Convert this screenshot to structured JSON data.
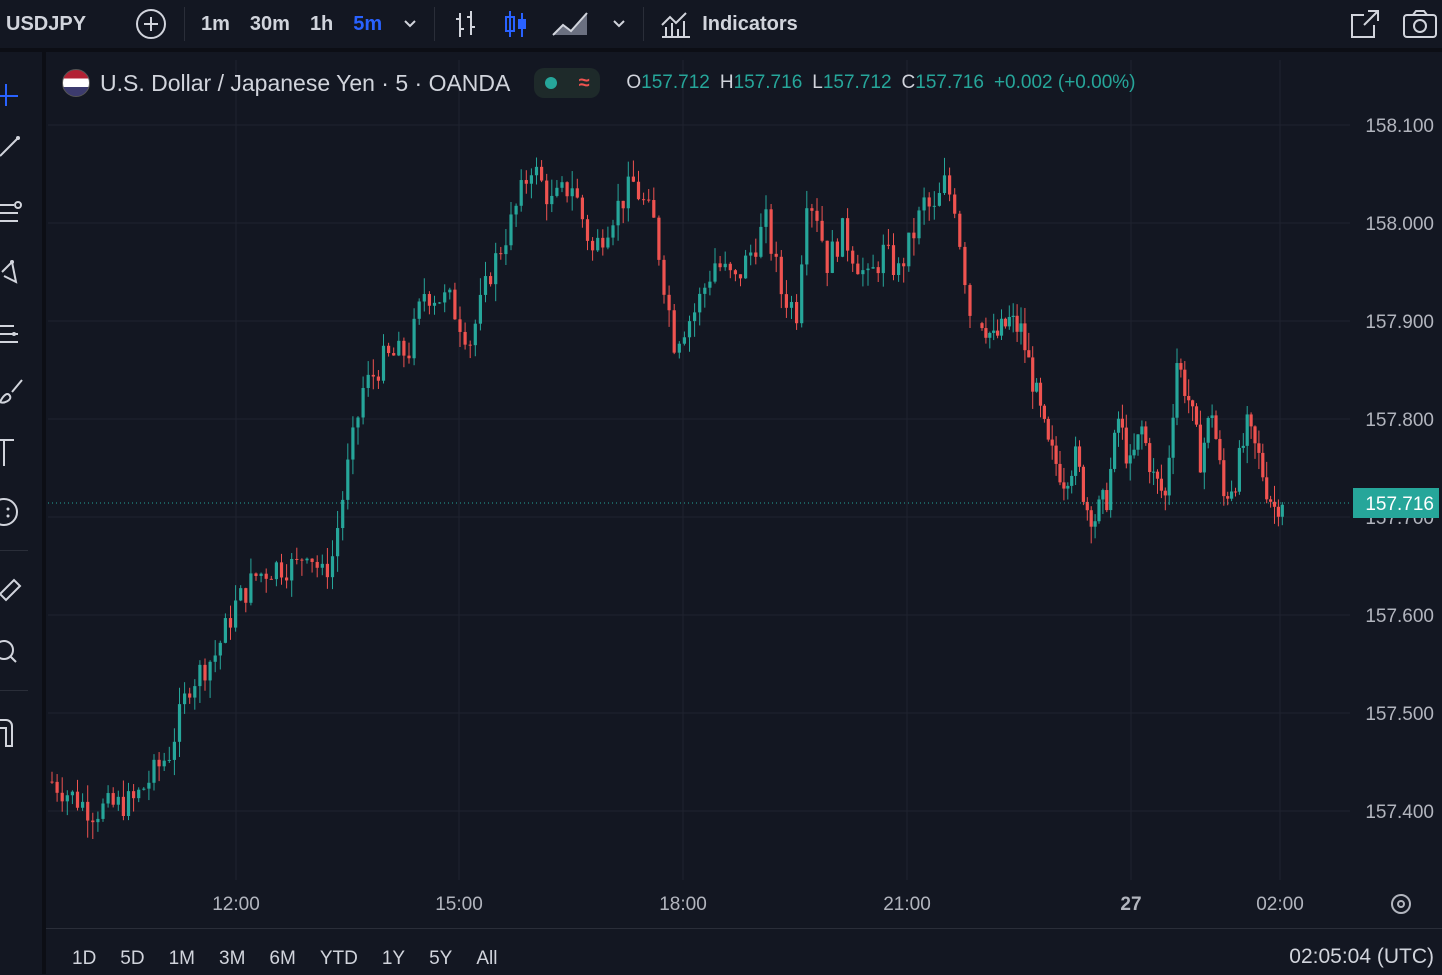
{
  "toolbar": {
    "symbol": "USDJPY",
    "intervals": [
      "1m",
      "30m",
      "1h",
      "5m"
    ],
    "active_interval": "5m",
    "indicators_label": "Indicators"
  },
  "legend": {
    "title": "U.S. Dollar / Japanese Yen · 5 · OANDA",
    "open_key": "O",
    "open": "157.712",
    "high_key": "H",
    "high": "157.716",
    "low_key": "L",
    "low": "157.712",
    "close_key": "C",
    "close": "157.716",
    "change": "+0.002 (+0.00%)"
  },
  "chart_data": {
    "type": "candlestick",
    "y_ticks": [
      "158.100",
      "158.000",
      "157.900",
      "157.800",
      "157.700",
      "157.600",
      "157.500",
      "157.400"
    ],
    "ylim": [
      157.36,
      158.12
    ],
    "x_ticks": [
      "12:00",
      "15:00",
      "18:00",
      "21:00",
      "27",
      "02:00"
    ],
    "last_price": "157.716",
    "grid": true,
    "up_color": "#26a69a",
    "down_color": "#ef5350",
    "series_path": [
      [
        0,
        157.43
      ],
      [
        8,
        157.4
      ],
      [
        16,
        157.41
      ],
      [
        23,
        157.46
      ],
      [
        27,
        157.53
      ],
      [
        32,
        157.56
      ],
      [
        36,
        157.61
      ],
      [
        40,
        157.64
      ],
      [
        44,
        157.65
      ],
      [
        48,
        157.65
      ],
      [
        50,
        157.67
      ],
      [
        53,
        157.64
      ],
      [
        55,
        157.66
      ],
      [
        58,
        157.75
      ],
      [
        61,
        157.83
      ],
      [
        65,
        157.86
      ],
      [
        70,
        157.87
      ],
      [
        73,
        157.93
      ],
      [
        78,
        157.92
      ],
      [
        82,
        157.88
      ],
      [
        86,
        157.95
      ],
      [
        90,
        158.0
      ],
      [
        94,
        158.06
      ],
      [
        98,
        158.02
      ],
      [
        102,
        158.04
      ],
      [
        106,
        157.97
      ],
      [
        110,
        158.01
      ],
      [
        114,
        158.04
      ],
      [
        118,
        158.0
      ],
      [
        122,
        157.88
      ],
      [
        126,
        157.91
      ],
      [
        130,
        157.96
      ],
      [
        134,
        157.94
      ],
      [
        137,
        157.97
      ],
      [
        140,
        158.0
      ],
      [
        143,
        157.93
      ],
      [
        146,
        157.91
      ],
      [
        148,
        158.03
      ],
      [
        150,
        158.01
      ],
      [
        152,
        157.96
      ],
      [
        155,
        157.99
      ],
      [
        160,
        157.94
      ],
      [
        163,
        157.97
      ],
      [
        166,
        157.95
      ],
      [
        169,
        157.99
      ],
      [
        171,
        158.02
      ],
      [
        173,
        158.01
      ],
      [
        175,
        158.04
      ],
      [
        177,
        158.02
      ],
      [
        180,
        157.91
      ],
      [
        184,
        157.88
      ],
      [
        188,
        157.9
      ],
      [
        191,
        157.89
      ],
      [
        194,
        157.84
      ],
      [
        198,
        157.77
      ],
      [
        202,
        157.74
      ],
      [
        205,
        157.76
      ],
      [
        208,
        157.71
      ],
      [
        210,
        157.7
      ],
      [
        213,
        157.72
      ],
      [
        216,
        157.8
      ],
      [
        219,
        157.75
      ],
      [
        222,
        157.79
      ],
      [
        225,
        157.74
      ],
      [
        228,
        157.72
      ],
      [
        231,
        157.86
      ],
      [
        234,
        157.82
      ],
      [
        237,
        157.76
      ],
      [
        240,
        157.81
      ],
      [
        243,
        157.72
      ],
      [
        246,
        157.74
      ],
      [
        249,
        157.79
      ],
      [
        252,
        157.76
      ],
      [
        254,
        157.73
      ],
      [
        256,
        157.71
      ],
      [
        258,
        157.72
      ]
    ],
    "candle_count": 259
  },
  "ranges": [
    "1D",
    "5D",
    "1M",
    "3M",
    "6M",
    "YTD",
    "1Y",
    "5Y",
    "All"
  ],
  "clock": "02:05:04 (UTC)",
  "colors": {
    "accent": "#2962ff",
    "bg": "#131722",
    "grid": "#1f2330",
    "text": "#d1d4dc"
  }
}
